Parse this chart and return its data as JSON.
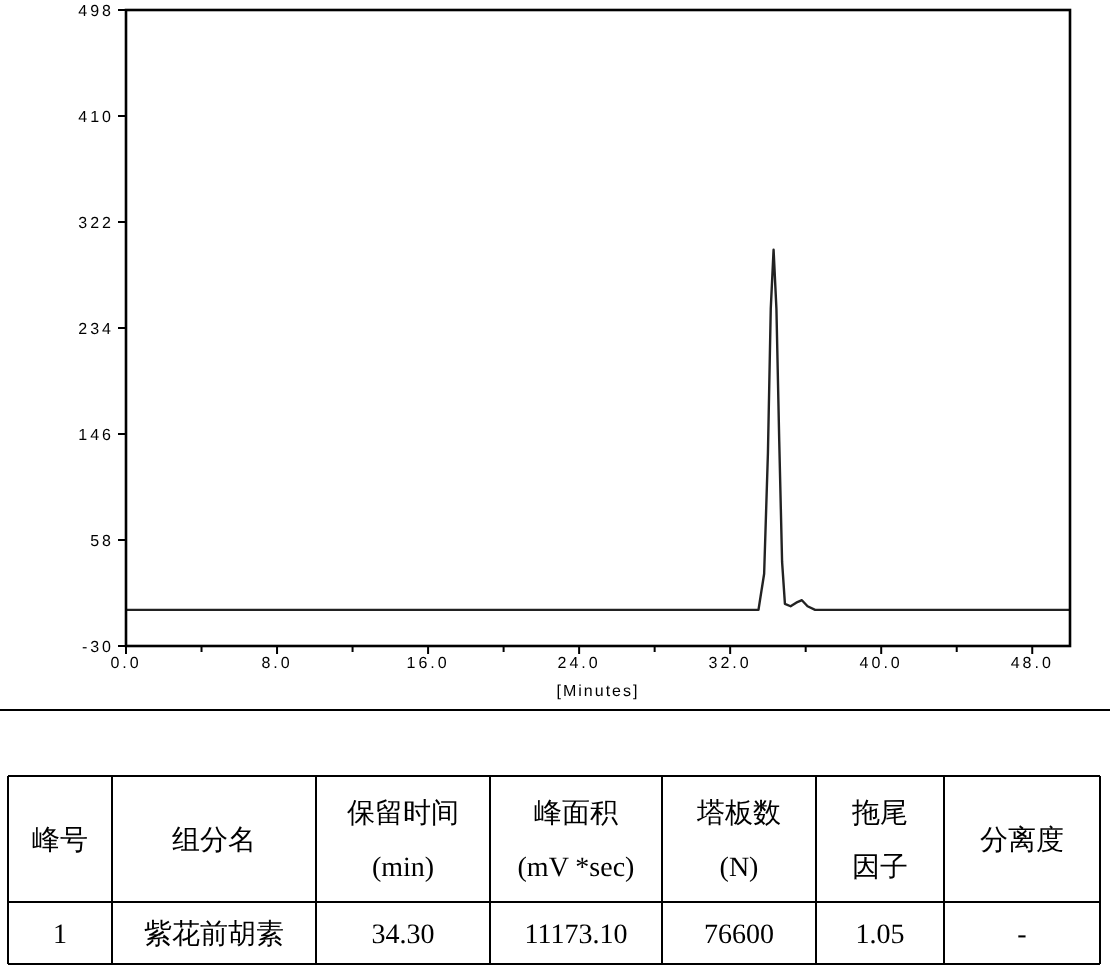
{
  "chart_data": {
    "type": "line",
    "xlabel": "[Minutes]",
    "x": [
      0,
      10,
      20,
      30,
      33.0,
      33.5,
      33.8,
      34.0,
      34.15,
      34.3,
      34.45,
      34.6,
      34.75,
      34.9,
      35.2,
      35.5,
      35.8,
      36.1,
      36.5,
      40,
      45,
      50
    ],
    "series": [
      {
        "color": "#222222",
        "values": [
          0,
          0,
          0,
          0,
          0,
          0,
          30,
          130,
          250,
          299,
          250,
          140,
          40,
          5,
          3,
          6,
          8,
          3,
          0,
          0,
          0,
          0
        ]
      }
    ],
    "xlim": [
      0,
      50
    ],
    "xticks": [
      {
        "value": 0,
        "label": "0.0"
      },
      {
        "value": 4,
        "label": null
      },
      {
        "value": 8,
        "label": "8.0"
      },
      {
        "value": 12,
        "label": null
      },
      {
        "value": 16,
        "label": "16.0"
      },
      {
        "value": 20,
        "label": null
      },
      {
        "value": 24,
        "label": "24.0"
      },
      {
        "value": 28,
        "label": null
      },
      {
        "value": 32,
        "label": "32.0"
      },
      {
        "value": 36,
        "label": null
      },
      {
        "value": 40,
        "label": "40.0"
      },
      {
        "value": 44,
        "label": null
      },
      {
        "value": 48,
        "label": "48.0"
      }
    ],
    "ylim": [
      -30,
      498
    ],
    "yticks": [
      -30,
      58,
      146,
      234,
      322,
      410,
      498
    ],
    "grid": false,
    "annotations": [
      "峰号",
      "组分名",
      "保留时间\n(min)",
      "峰面积\n(mV *sec)",
      "塔板数\n(N)",
      "拖尾因子",
      "分离度",
      "1",
      "紫花前胡素",
      "34.30",
      "11173.10",
      "76600",
      "1.05",
      "-"
    ]
  }
}
